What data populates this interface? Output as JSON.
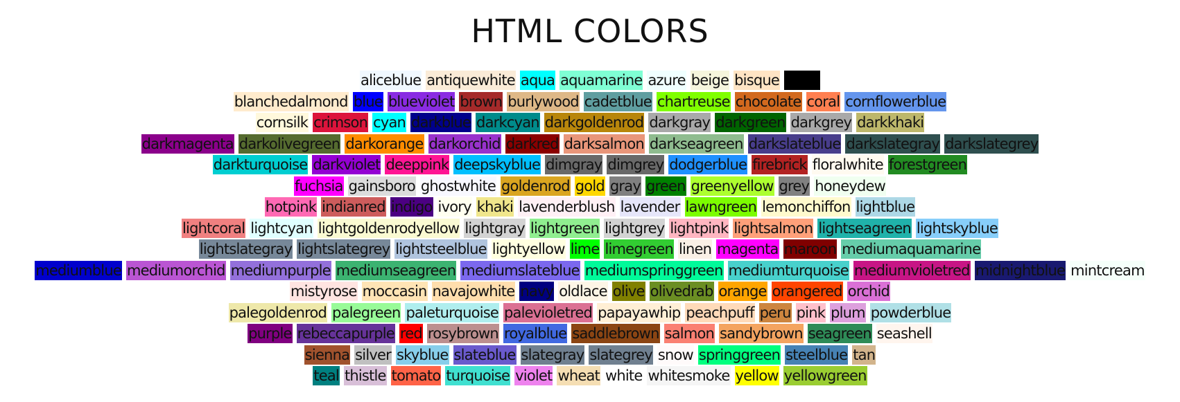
{
  "title": "HTML COLORS",
  "rows": [
    [
      {
        "name": "aliceblue",
        "hex": "#f0f8ff"
      },
      {
        "name": "antiquewhite",
        "hex": "#faebd7"
      },
      {
        "name": "aqua",
        "hex": "#00ffff"
      },
      {
        "name": "aquamarine",
        "hex": "#7fffd4"
      },
      {
        "name": "azure",
        "hex": "#f0ffff"
      },
      {
        "name": "beige",
        "hex": "#f5f5dc"
      },
      {
        "name": "bisque",
        "hex": "#ffe4c4"
      },
      {
        "name": "",
        "hex": "#000000"
      }
    ],
    [
      {
        "name": "blanchedalmond",
        "hex": "#ffebcd"
      },
      {
        "name": "blue",
        "hex": "#0000ff"
      },
      {
        "name": "blueviolet",
        "hex": "#8a2be2"
      },
      {
        "name": "brown",
        "hex": "#a52a2a"
      },
      {
        "name": "burlywood",
        "hex": "#deb887"
      },
      {
        "name": "cadetblue",
        "hex": "#5f9ea0"
      },
      {
        "name": "chartreuse",
        "hex": "#7fff00"
      },
      {
        "name": "chocolate",
        "hex": "#d2691e"
      },
      {
        "name": "coral",
        "hex": "#ff7f50"
      },
      {
        "name": "cornflowerblue",
        "hex": "#6495ed"
      }
    ],
    [
      {
        "name": "cornsilk",
        "hex": "#fff8dc"
      },
      {
        "name": "crimson",
        "hex": "#dc143c"
      },
      {
        "name": "cyan",
        "hex": "#00ffff"
      },
      {
        "name": "darkblue",
        "hex": "#00008b"
      },
      {
        "name": "darkcyan",
        "hex": "#008b8b"
      },
      {
        "name": "darkgoldenrod",
        "hex": "#b8860b"
      },
      {
        "name": "darkgray",
        "hex": "#a9a9a9"
      },
      {
        "name": "darkgreen",
        "hex": "#006400"
      },
      {
        "name": "darkgrey",
        "hex": "#a9a9a9"
      },
      {
        "name": "darkkhaki",
        "hex": "#bdb76b"
      }
    ],
    [
      {
        "name": "darkmagenta",
        "hex": "#8b008b"
      },
      {
        "name": "darkolivegreen",
        "hex": "#556b2f"
      },
      {
        "name": "darkorange",
        "hex": "#ff8c00"
      },
      {
        "name": "darkorchid",
        "hex": "#9932cc"
      },
      {
        "name": "darkred",
        "hex": "#8b0000"
      },
      {
        "name": "darksalmon",
        "hex": "#e9967a"
      },
      {
        "name": "darkseagreen",
        "hex": "#8fbc8f"
      },
      {
        "name": "darkslateblue",
        "hex": "#483d8b"
      },
      {
        "name": "darkslategray",
        "hex": "#2f4f4f"
      },
      {
        "name": "darkslategrey",
        "hex": "#2f4f4f"
      }
    ],
    [
      {
        "name": "darkturquoise",
        "hex": "#00ced1"
      },
      {
        "name": "darkviolet",
        "hex": "#9400d3"
      },
      {
        "name": "deeppink",
        "hex": "#ff1493"
      },
      {
        "name": "deepskyblue",
        "hex": "#00bfff"
      },
      {
        "name": "dimgray",
        "hex": "#696969"
      },
      {
        "name": "dimgrey",
        "hex": "#696969"
      },
      {
        "name": "dodgerblue",
        "hex": "#1e90ff"
      },
      {
        "name": "firebrick",
        "hex": "#b22222"
      },
      {
        "name": "floralwhite",
        "hex": "#fffaf0"
      },
      {
        "name": "forestgreen",
        "hex": "#228b22"
      }
    ],
    [
      {
        "name": "fuchsia",
        "hex": "#ff00ff"
      },
      {
        "name": "gainsboro",
        "hex": "#dcdcdc"
      },
      {
        "name": "ghostwhite",
        "hex": "#f8f8ff"
      },
      {
        "name": "goldenrod",
        "hex": "#daa520"
      },
      {
        "name": "gold",
        "hex": "#ffd700"
      },
      {
        "name": "gray",
        "hex": "#808080"
      },
      {
        "name": "green",
        "hex": "#008000"
      },
      {
        "name": "greenyellow",
        "hex": "#adff2f"
      },
      {
        "name": "grey",
        "hex": "#808080"
      },
      {
        "name": "honeydew",
        "hex": "#f0fff0"
      }
    ],
    [
      {
        "name": "hotpink",
        "hex": "#ff69b4"
      },
      {
        "name": "indianred",
        "hex": "#cd5c5c"
      },
      {
        "name": "indigo",
        "hex": "#4b0082"
      },
      {
        "name": "ivory",
        "hex": "#fffff0"
      },
      {
        "name": "khaki",
        "hex": "#f0e68c"
      },
      {
        "name": "lavenderblush",
        "hex": "#fff0f5"
      },
      {
        "name": "lavender",
        "hex": "#e6e6fa"
      },
      {
        "name": "lawngreen",
        "hex": "#7cfc00"
      },
      {
        "name": "lemonchiffon",
        "hex": "#fffacd"
      },
      {
        "name": "lightblue",
        "hex": "#add8e6"
      }
    ],
    [
      {
        "name": "lightcoral",
        "hex": "#f08080"
      },
      {
        "name": "lightcyan",
        "hex": "#e0ffff"
      },
      {
        "name": "lightgoldenrodyellow",
        "hex": "#fafad2"
      },
      {
        "name": "lightgray",
        "hex": "#d3d3d3"
      },
      {
        "name": "lightgreen",
        "hex": "#90ee90"
      },
      {
        "name": "lightgrey",
        "hex": "#d3d3d3"
      },
      {
        "name": "lightpink",
        "hex": "#ffb6c1"
      },
      {
        "name": "lightsalmon",
        "hex": "#ffa07a"
      },
      {
        "name": "lightseagreen",
        "hex": "#20b2aa"
      },
      {
        "name": "lightskyblue",
        "hex": "#87cefa"
      }
    ],
    [
      {
        "name": "lightslategray",
        "hex": "#778899"
      },
      {
        "name": "lightslategrey",
        "hex": "#778899"
      },
      {
        "name": "lightsteelblue",
        "hex": "#b0c4de"
      },
      {
        "name": "lightyellow",
        "hex": "#ffffe0"
      },
      {
        "name": "lime",
        "hex": "#00ff00"
      },
      {
        "name": "limegreen",
        "hex": "#32cd32"
      },
      {
        "name": "linen",
        "hex": "#faf0e6"
      },
      {
        "name": "magenta",
        "hex": "#ff00ff"
      },
      {
        "name": "maroon",
        "hex": "#800000"
      },
      {
        "name": "mediumaquamarine",
        "hex": "#66cdaa"
      }
    ],
    [
      {
        "name": "mediumblue",
        "hex": "#0000cd"
      },
      {
        "name": "mediumorchid",
        "hex": "#ba55d3"
      },
      {
        "name": "mediumpurple",
        "hex": "#9370db"
      },
      {
        "name": "mediumseagreen",
        "hex": "#3cb371"
      },
      {
        "name": "mediumslateblue",
        "hex": "#7b68ee"
      },
      {
        "name": "mediumspringgreen",
        "hex": "#00fa9a"
      },
      {
        "name": "mediumturquoise",
        "hex": "#48d1cc"
      },
      {
        "name": "mediumvioletred",
        "hex": "#c71585"
      },
      {
        "name": "midnightblue",
        "hex": "#191970"
      },
      {
        "name": "mintcream",
        "hex": "#f5fffa"
      }
    ],
    [
      {
        "name": "mistyrose",
        "hex": "#ffe4e1"
      },
      {
        "name": "moccasin",
        "hex": "#ffe4b5"
      },
      {
        "name": "navajowhite",
        "hex": "#ffdead"
      },
      {
        "name": "navy",
        "hex": "#000080"
      },
      {
        "name": "oldlace",
        "hex": "#fdf5e6"
      },
      {
        "name": "olive",
        "hex": "#808000"
      },
      {
        "name": "olivedrab",
        "hex": "#6b8e23"
      },
      {
        "name": "orange",
        "hex": "#ffa500"
      },
      {
        "name": "orangered",
        "hex": "#ff4500"
      },
      {
        "name": "orchid",
        "hex": "#da70d6"
      }
    ],
    [
      {
        "name": "palegoldenrod",
        "hex": "#eee8aa"
      },
      {
        "name": "palegreen",
        "hex": "#98fb98"
      },
      {
        "name": "paleturquoise",
        "hex": "#afeeee"
      },
      {
        "name": "palevioletred",
        "hex": "#db7093"
      },
      {
        "name": "papayawhip",
        "hex": "#ffefd5"
      },
      {
        "name": "peachpuff",
        "hex": "#ffdab9"
      },
      {
        "name": "peru",
        "hex": "#cd853f"
      },
      {
        "name": "pink",
        "hex": "#ffc0cb"
      },
      {
        "name": "plum",
        "hex": "#dda0dd"
      },
      {
        "name": "powderblue",
        "hex": "#b0e0e6"
      }
    ],
    [
      {
        "name": "purple",
        "hex": "#800080"
      },
      {
        "name": "rebeccapurple",
        "hex": "#663399"
      },
      {
        "name": "red",
        "hex": "#ff0000"
      },
      {
        "name": "rosybrown",
        "hex": "#bc8f8f"
      },
      {
        "name": "royalblue",
        "hex": "#4169e1"
      },
      {
        "name": "saddlebrown",
        "hex": "#8b4513"
      },
      {
        "name": "salmon",
        "hex": "#fa8072"
      },
      {
        "name": "sandybrown",
        "hex": "#f4a460"
      },
      {
        "name": "seagreen",
        "hex": "#2e8b57"
      },
      {
        "name": "seashell",
        "hex": "#fff5ee"
      }
    ],
    [
      {
        "name": "sienna",
        "hex": "#a0522d"
      },
      {
        "name": "silver",
        "hex": "#c0c0c0"
      },
      {
        "name": "skyblue",
        "hex": "#87ceeb"
      },
      {
        "name": "slateblue",
        "hex": "#6a5acd"
      },
      {
        "name": "slategray",
        "hex": "#708090"
      },
      {
        "name": "slategrey",
        "hex": "#708090"
      },
      {
        "name": "snow",
        "hex": "#fffafa"
      },
      {
        "name": "springgreen",
        "hex": "#00ff7f"
      },
      {
        "name": "steelblue",
        "hex": "#4682b4"
      },
      {
        "name": "tan",
        "hex": "#d2b48c"
      }
    ],
    [
      {
        "name": "teal",
        "hex": "#008080"
      },
      {
        "name": "thistle",
        "hex": "#d8bfd8"
      },
      {
        "name": "tomato",
        "hex": "#ff6347"
      },
      {
        "name": "turquoise",
        "hex": "#40e0d0"
      },
      {
        "name": "violet",
        "hex": "#ee82ee"
      },
      {
        "name": "wheat",
        "hex": "#f5deb3"
      },
      {
        "name": "white",
        "hex": "#ffffff"
      },
      {
        "name": "whitesmoke",
        "hex": "#f5f5f5"
      },
      {
        "name": "yellow",
        "hex": "#ffff00"
      },
      {
        "name": "yellowgreen",
        "hex": "#9acd32"
      }
    ]
  ]
}
